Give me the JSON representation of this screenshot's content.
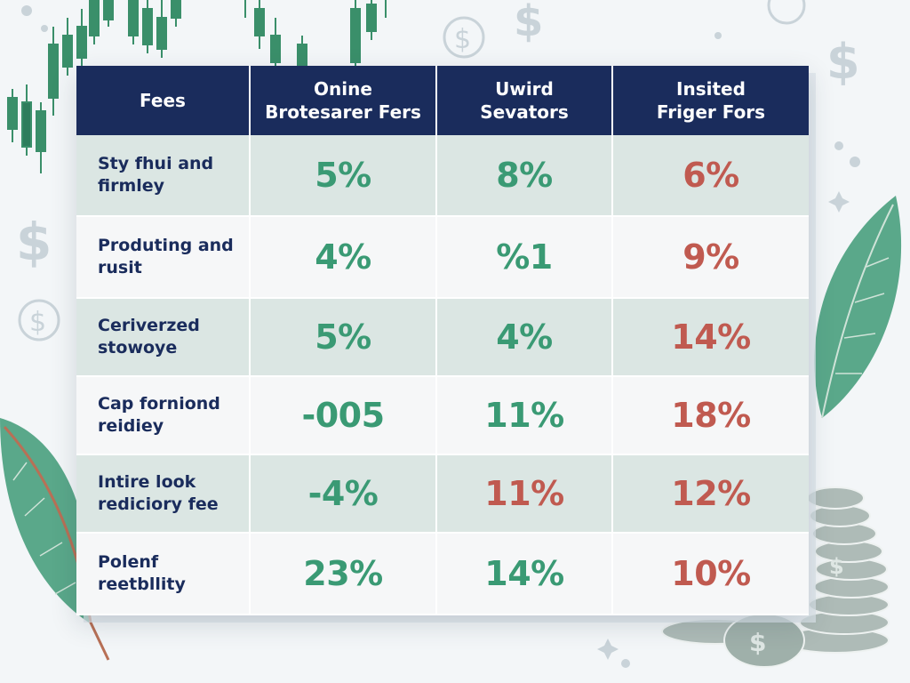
{
  "colors": {
    "header_bg": "#1a2c5c",
    "green": "#3a9a74",
    "red": "#c05a50",
    "row_tint": "#dbe6e3",
    "row_plain": "#f6f7f8"
  },
  "decor": {
    "icons": [
      "dollar-sign-icon",
      "coin-icon",
      "leaf-icon",
      "candlestick-chart-icon",
      "coin-stack-icon",
      "sparkle-icon"
    ]
  },
  "table": {
    "headers": [
      "Fees",
      "Onine\nBrotesarer Fers",
      "Uwird\nSevators",
      "Insited\nFriger Fors"
    ],
    "rows": [
      {
        "label": "Sty fhui and\nfirmley",
        "values": [
          "5%",
          "8%",
          "6%"
        ],
        "tones": [
          "green",
          "green",
          "red"
        ]
      },
      {
        "label": "Produting and\nrusit",
        "values": [
          "4%",
          "%1",
          "9%"
        ],
        "tones": [
          "green",
          "green",
          "red"
        ]
      },
      {
        "label": "Ceriverzed\nstowoye",
        "values": [
          "5%",
          "4%",
          "14%"
        ],
        "tones": [
          "green",
          "green",
          "red"
        ]
      },
      {
        "label": "Cap forniond\nreidiey",
        "values": [
          "-005",
          "11%",
          "18%"
        ],
        "tones": [
          "green",
          "green",
          "red"
        ]
      },
      {
        "label": "Intire look\nrediciory fee",
        "values": [
          "-4%",
          "11%",
          "12%"
        ],
        "tones": [
          "green",
          "red",
          "red"
        ]
      },
      {
        "label": "Polenf\nreetbllity",
        "values": [
          "23%",
          "14%",
          "10%"
        ],
        "tones": [
          "green",
          "green",
          "red"
        ]
      }
    ]
  }
}
